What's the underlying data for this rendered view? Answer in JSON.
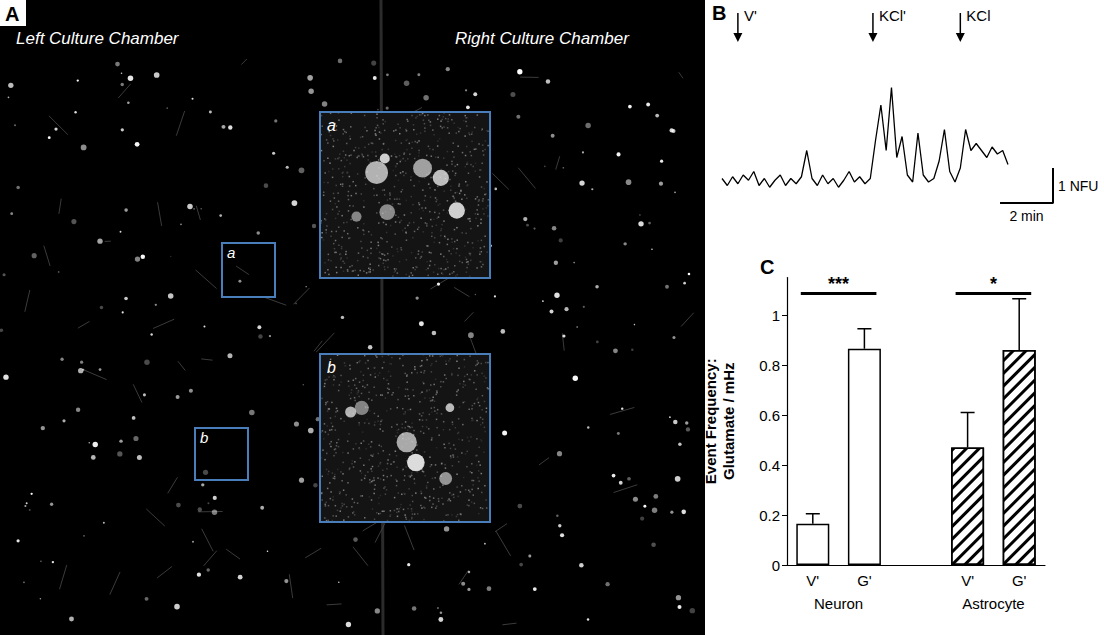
{
  "panel_a": {
    "letter": "A",
    "left_chamber": "Left Culture Chamber",
    "right_chamber": "Right Culture Chamber",
    "insets": [
      "a",
      "b"
    ]
  },
  "chart_data": [
    {
      "panel": "B",
      "type": "line",
      "color": "#000000",
      "x": [
        0,
        0.2,
        0.4,
        0.6,
        0.8,
        1,
        1.2,
        1.4,
        1.6,
        1.8,
        2,
        2.2,
        2.4,
        2.6,
        2.8,
        3,
        3.2,
        3.4,
        3.6,
        3.8,
        4,
        4.2,
        4.4,
        4.6,
        4.8,
        5,
        5.2,
        5.4,
        5.6,
        5.8,
        6,
        6.2,
        6.4,
        6.6,
        6.8,
        7,
        7.2,
        7.4,
        7.6,
        7.8,
        8,
        8.2,
        8.4,
        8.6,
        8.8,
        9,
        9.2,
        9.4,
        9.6,
        9.8,
        10,
        10.2,
        10.4,
        10.6,
        10.8
      ],
      "values": [
        0.1,
        -0.1,
        0.15,
        -0.05,
        0.2,
        0.05,
        0.3,
        -0.1,
        0.1,
        -0.15,
        0.05,
        0.2,
        -0.1,
        0.1,
        -0.05,
        0.15,
        0.9,
        0.1,
        -0.1,
        0.2,
        -0.05,
        0.1,
        -0.15,
        0.05,
        0.3,
        0,
        0.15,
        -0.05,
        0.1,
        1.2,
        2.2,
        0.9,
        2.7,
        0.7,
        1.3,
        0.2,
        0,
        1.4,
        0.2,
        0,
        0.1,
        0.6,
        1.5,
        0.3,
        0,
        0.4,
        1.5,
        0.9,
        1.1,
        0.9,
        0.7,
        1.0,
        0.8,
        0.9,
        0.5
      ],
      "xlim": [
        0,
        12.5
      ],
      "ylim": [
        -0.6,
        3.2
      ],
      "tick_labels": false,
      "grid": false,
      "events": [
        {
          "x": 0.6,
          "label": "V'"
        },
        {
          "x": 5.7,
          "label": "KCl'"
        },
        {
          "x": 9.0,
          "label": "KCl"
        }
      ],
      "scale_bar": {
        "x": 2,
        "x_label": "2 min",
        "y": 1,
        "y_label": "1 NFU"
      }
    },
    {
      "panel": "C",
      "type": "bar",
      "categories": [
        "V'",
        "G'",
        null,
        "V'",
        "G'"
      ],
      "series": [
        {
          "name": "Neuron",
          "color": "#ffffff",
          "values": [
            0.165,
            0.865,
            null,
            null,
            null
          ],
          "errors": [
            0.04,
            0.08,
            null,
            null,
            null
          ]
        },
        {
          "name": "Astrocyte",
          "color": "#ffffff",
          "values": [
            null,
            null,
            null,
            0.47,
            0.86
          ],
          "errors": [
            null,
            null,
            null,
            0.14,
            0.205
          ]
        }
      ],
      "y_label": "Event Frequency:\nGlutamate / mHz",
      "ylim": [
        0,
        1.15
      ],
      "yticks": [
        0,
        0.2,
        0.4,
        0.6,
        0.8,
        1
      ],
      "grid": false,
      "significance": [
        {
          "from": 0,
          "to": 1,
          "label": "***"
        },
        {
          "from": 3,
          "to": 4,
          "label": "*"
        }
      ]
    }
  ]
}
